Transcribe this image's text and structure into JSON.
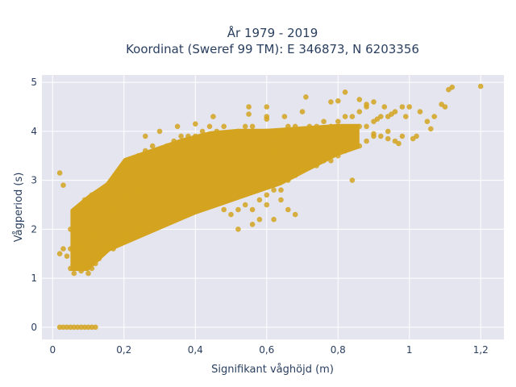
{
  "chart_data": {
    "type": "scatter",
    "title_lines": [
      "År 1979 - 2019",
      "Koordinat (Sweref 99 TM): E 346873, N 6203356"
    ],
    "xlabel": "Signifikant våghöjd (m)",
    "ylabel": "Vågperiod (s)",
    "xlim": [
      -0.03,
      1.265
    ],
    "ylim": [
      -0.25,
      5.15
    ],
    "xticks": [
      0,
      0.2,
      0.4,
      0.6,
      0.8,
      1,
      1.2
    ],
    "xtick_labels": [
      "0",
      "0,2",
      "0,4",
      "0,6",
      "0,8",
      "1",
      "1,2"
    ],
    "yticks": [
      0,
      1,
      2,
      3,
      4,
      5
    ],
    "ytick_labels": [
      "0",
      "1",
      "2",
      "3",
      "4",
      "5"
    ],
    "grid": true,
    "colors": {
      "marker": "#D4A420",
      "plot_bg": "#E5E5F0",
      "grid": "#ffffff",
      "text": "#2a3f5f"
    },
    "series": [
      {
        "points": [
          [
            0.02,
            0
          ],
          [
            0.03,
            0
          ],
          [
            0.04,
            0
          ],
          [
            0.05,
            0
          ],
          [
            0.06,
            0
          ],
          [
            0.07,
            0
          ],
          [
            0.08,
            0
          ],
          [
            0.09,
            0
          ],
          [
            0.1,
            0
          ],
          [
            0.11,
            0
          ],
          [
            0.12,
            0
          ],
          [
            0.02,
            3.15
          ],
          [
            0.03,
            2.9
          ],
          [
            0.02,
            1.5
          ],
          [
            0.03,
            1.6
          ],
          [
            0.04,
            1.45
          ],
          [
            0.05,
            1.2
          ],
          [
            0.05,
            1.6
          ],
          [
            0.05,
            2.0
          ],
          [
            0.06,
            1.1
          ],
          [
            0.06,
            1.7
          ],
          [
            0.06,
            2.3
          ],
          [
            0.07,
            1.2
          ],
          [
            0.07,
            1.8
          ],
          [
            0.07,
            2.4
          ],
          [
            0.08,
            1.15
          ],
          [
            0.08,
            1.6
          ],
          [
            0.08,
            2.1
          ],
          [
            0.08,
            2.5
          ],
          [
            0.09,
            1.2
          ],
          [
            0.09,
            1.7
          ],
          [
            0.09,
            2.2
          ],
          [
            0.09,
            2.6
          ],
          [
            0.1,
            1.1
          ],
          [
            0.1,
            1.5
          ],
          [
            0.1,
            2.0
          ],
          [
            0.1,
            2.5
          ],
          [
            0.11,
            1.2
          ],
          [
            0.11,
            1.8
          ],
          [
            0.11,
            2.3
          ],
          [
            0.11,
            2.7
          ],
          [
            0.12,
            1.3
          ],
          [
            0.12,
            1.9
          ],
          [
            0.12,
            2.4
          ],
          [
            0.13,
            1.4
          ],
          [
            0.13,
            2.0
          ],
          [
            0.13,
            2.6
          ],
          [
            0.14,
            1.5
          ],
          [
            0.14,
            2.1
          ],
          [
            0.14,
            2.8
          ],
          [
            0.15,
            1.6
          ],
          [
            0.15,
            2.2
          ],
          [
            0.15,
            2.7
          ],
          [
            0.16,
            1.7
          ],
          [
            0.16,
            2.3
          ],
          [
            0.16,
            2.9
          ],
          [
            0.17,
            1.6
          ],
          [
            0.17,
            2.4
          ],
          [
            0.17,
            3.0
          ],
          [
            0.18,
            1.8
          ],
          [
            0.18,
            2.5
          ],
          [
            0.18,
            3.1
          ],
          [
            0.19,
            1.7
          ],
          [
            0.19,
            2.4
          ],
          [
            0.19,
            3.2
          ],
          [
            0.2,
            1.8
          ],
          [
            0.2,
            2.6
          ],
          [
            0.2,
            3.3
          ],
          [
            0.21,
            1.9
          ],
          [
            0.21,
            2.7
          ],
          [
            0.21,
            3.4
          ],
          [
            0.22,
            1.8
          ],
          [
            0.22,
            2.5
          ],
          [
            0.22,
            3.3
          ],
          [
            0.24,
            2.0
          ],
          [
            0.24,
            2.8
          ],
          [
            0.24,
            3.5
          ],
          [
            0.26,
            2.1
          ],
          [
            0.26,
            2.9
          ],
          [
            0.26,
            3.6
          ],
          [
            0.28,
            2.2
          ],
          [
            0.28,
            3.0
          ],
          [
            0.28,
            3.7
          ],
          [
            0.3,
            2.2
          ],
          [
            0.3,
            3.1
          ],
          [
            0.3,
            3.6
          ],
          [
            0.32,
            2.3
          ],
          [
            0.32,
            3.1
          ],
          [
            0.32,
            3.7
          ],
          [
            0.34,
            2.4
          ],
          [
            0.34,
            3.2
          ],
          [
            0.34,
            3.8
          ],
          [
            0.36,
            2.5
          ],
          [
            0.36,
            3.3
          ],
          [
            0.36,
            3.9
          ],
          [
            0.38,
            2.5
          ],
          [
            0.38,
            3.3
          ],
          [
            0.38,
            3.9
          ],
          [
            0.4,
            2.5
          ],
          [
            0.4,
            3.3
          ],
          [
            0.4,
            3.9
          ],
          [
            0.42,
            2.6
          ],
          [
            0.42,
            3.4
          ],
          [
            0.42,
            4.0
          ],
          [
            0.44,
            2.6
          ],
          [
            0.44,
            3.5
          ],
          [
            0.44,
            4.1
          ],
          [
            0.46,
            2.8
          ],
          [
            0.46,
            3.5
          ],
          [
            0.46,
            4.0
          ],
          [
            0.48,
            2.4
          ],
          [
            0.48,
            3.0
          ],
          [
            0.48,
            3.6
          ],
          [
            0.48,
            4.1
          ],
          [
            0.5,
            2.3
          ],
          [
            0.5,
            3.1
          ],
          [
            0.5,
            3.8
          ],
          [
            0.52,
            2.4
          ],
          [
            0.52,
            3.2
          ],
          [
            0.52,
            4.0
          ],
          [
            0.54,
            2.5
          ],
          [
            0.54,
            3.3
          ],
          [
            0.54,
            4.1
          ],
          [
            0.56,
            2.4
          ],
          [
            0.56,
            3.1
          ],
          [
            0.56,
            3.6
          ],
          [
            0.56,
            4.1
          ],
          [
            0.58,
            2.6
          ],
          [
            0.58,
            3.2
          ],
          [
            0.58,
            3.9
          ],
          [
            0.6,
            2.7
          ],
          [
            0.6,
            3.3
          ],
          [
            0.6,
            4.0
          ],
          [
            0.62,
            2.8
          ],
          [
            0.62,
            3.3
          ],
          [
            0.62,
            3.9
          ],
          [
            0.64,
            2.8
          ],
          [
            0.64,
            3.4
          ],
          [
            0.64,
            4.0
          ],
          [
            0.66,
            3.0
          ],
          [
            0.66,
            3.5
          ],
          [
            0.66,
            4.1
          ],
          [
            0.68,
            3.1
          ],
          [
            0.68,
            3.6
          ],
          [
            0.68,
            4.1
          ],
          [
            0.7,
            3.2
          ],
          [
            0.7,
            3.7
          ],
          [
            0.7,
            4.0
          ],
          [
            0.72,
            3.3
          ],
          [
            0.72,
            3.8
          ],
          [
            0.72,
            4.1
          ],
          [
            0.74,
            3.3
          ],
          [
            0.74,
            3.7
          ],
          [
            0.74,
            4.1
          ],
          [
            0.76,
            3.4
          ],
          [
            0.76,
            3.8
          ],
          [
            0.76,
            4.2
          ],
          [
            0.78,
            3.4
          ],
          [
            0.78,
            3.9
          ],
          [
            0.78,
            4.1
          ],
          [
            0.8,
            3.5
          ],
          [
            0.8,
            3.8
          ],
          [
            0.8,
            4.2
          ],
          [
            0.82,
            3.6
          ],
          [
            0.82,
            4.0
          ],
          [
            0.82,
            4.3
          ],
          [
            0.84,
            3.7
          ],
          [
            0.84,
            4.0
          ],
          [
            0.84,
            4.3
          ],
          [
            0.86,
            3.7
          ],
          [
            0.86,
            4.1
          ],
          [
            0.86,
            4.4
          ],
          [
            0.88,
            3.8
          ],
          [
            0.88,
            4.1
          ],
          [
            0.88,
            4.5
          ],
          [
            0.9,
            3.9
          ],
          [
            0.9,
            4.2
          ],
          [
            0.92,
            3.9
          ],
          [
            0.92,
            4.3
          ],
          [
            0.94,
            4.0
          ],
          [
            0.94,
            4.3
          ],
          [
            0.96,
            3.8
          ],
          [
            0.96,
            4.4
          ],
          [
            0.98,
            3.9
          ],
          [
            0.98,
            4.5
          ],
          [
            0.3,
            2.8
          ],
          [
            0.34,
            3.0
          ],
          [
            0.38,
            2.9
          ],
          [
            0.42,
            3.1
          ],
          [
            0.46,
            3.2
          ],
          [
            0.5,
            3.5
          ],
          [
            0.54,
            3.6
          ],
          [
            0.58,
            3.7
          ],
          [
            0.62,
            3.6
          ],
          [
            0.66,
            3.8
          ],
          [
            0.7,
            3.5
          ],
          [
            0.74,
            3.5
          ],
          [
            0.52,
            2.0
          ],
          [
            0.58,
            2.2
          ],
          [
            0.64,
            2.6
          ],
          [
            0.6,
            2.5
          ],
          [
            0.56,
            2.1
          ],
          [
            0.66,
            2.4
          ],
          [
            0.68,
            2.3
          ],
          [
            0.62,
            2.2
          ],
          [
            0.55,
            4.35
          ],
          [
            0.6,
            4.3
          ],
          [
            0.65,
            4.3
          ],
          [
            0.7,
            4.4
          ],
          [
            0.4,
            4.15
          ],
          [
            0.45,
            4.3
          ],
          [
            0.35,
            4.1
          ],
          [
            0.3,
            4.0
          ],
          [
            0.26,
            3.9
          ],
          [
            0.6,
            4.5
          ],
          [
            0.55,
            4.5
          ],
          [
            0.71,
            4.7
          ],
          [
            0.78,
            4.6
          ],
          [
            0.8,
            4.62
          ],
          [
            0.86,
            4.65
          ],
          [
            0.88,
            4.55
          ],
          [
            0.9,
            4.6
          ],
          [
            0.93,
            4.5
          ],
          [
            0.95,
            4.35
          ],
          [
            0.99,
            4.3
          ],
          [
            1.0,
            4.5
          ],
          [
            1.03,
            4.4
          ],
          [
            1.05,
            4.2
          ],
          [
            1.06,
            4.05
          ],
          [
            1.09,
            4.55
          ],
          [
            1.1,
            4.5
          ],
          [
            1.07,
            4.3
          ],
          [
            1.11,
            4.85
          ],
          [
            1.12,
            4.9
          ],
          [
            1.2,
            4.92
          ],
          [
            0.84,
            3.0
          ],
          [
            0.6,
            4.25
          ],
          [
            0.82,
            4.8
          ],
          [
            0.91,
            4.25
          ],
          [
            0.94,
            3.85
          ],
          [
            1.02,
            3.9
          ],
          [
            0.97,
            3.75
          ],
          [
            1.01,
            3.85
          ],
          [
            0.9,
            3.95
          ]
        ]
      }
    ]
  }
}
